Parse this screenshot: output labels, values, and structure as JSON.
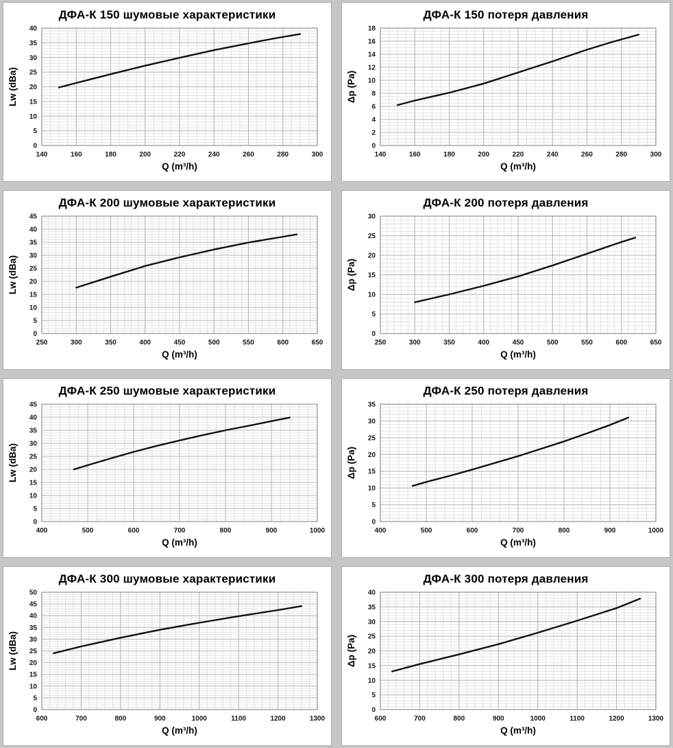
{
  "colors": {
    "page_background": "#c6c6c6",
    "panel_background": "#ffffff",
    "panel_border": "#ababab",
    "grid_minor": "#e3e3e3",
    "grid_major": "#b6b6b6",
    "plot_border": "#7d7d7d",
    "curve": "#101010",
    "text": "#000000"
  },
  "chart_data": [
    {
      "type": "line",
      "title": "ДФА-К 150 шумовые характеристики",
      "xlabel": "Q (m³/h)",
      "ylabel": "Lw (dBa)",
      "xlim": [
        140,
        300
      ],
      "ylim": [
        0,
        40
      ],
      "xticks": [
        140,
        160,
        180,
        200,
        220,
        240,
        260,
        280,
        300
      ],
      "yticks": [
        0,
        5,
        10,
        15,
        20,
        25,
        30,
        35,
        40
      ],
      "x_minor_step": 5,
      "y_minor_step": 1,
      "grid": true,
      "legend": false,
      "x": [
        150,
        160,
        180,
        200,
        220,
        240,
        260,
        275,
        290
      ],
      "y": [
        19.8,
        21.3,
        24.3,
        27.2,
        29.9,
        32.5,
        34.8,
        36.5,
        38
      ]
    },
    {
      "type": "line",
      "title": "ДФА-К 150 потеря давления",
      "xlabel": "Q (m³/h)",
      "ylabel": "Δp (Pa)",
      "xlim": [
        140,
        300
      ],
      "ylim": [
        0,
        18
      ],
      "xticks": [
        140,
        160,
        180,
        200,
        220,
        240,
        260,
        280,
        300
      ],
      "yticks": [
        0,
        2,
        4,
        6,
        8,
        10,
        12,
        14,
        16,
        18
      ],
      "x_minor_step": 5,
      "y_minor_step": 0.5,
      "grid": true,
      "legend": false,
      "x": [
        150,
        160,
        180,
        200,
        220,
        240,
        260,
        275,
        290
      ],
      "y": [
        6.2,
        6.9,
        8.1,
        9.5,
        11.2,
        12.9,
        14.7,
        15.9,
        17
      ]
    },
    {
      "type": "line",
      "title": "ДФА-К 200 шумовые характеристики",
      "xlabel": "Q (m³/h)",
      "ylabel": "Lw (dBa)",
      "xlim": [
        250,
        650
      ],
      "ylim": [
        0,
        45
      ],
      "xticks": [
        250,
        300,
        350,
        400,
        450,
        500,
        550,
        600,
        650
      ],
      "yticks": [
        0,
        5,
        10,
        15,
        20,
        25,
        30,
        35,
        40,
        45
      ],
      "x_minor_step": 10,
      "y_minor_step": 1,
      "grid": true,
      "legend": false,
      "x": [
        300,
        350,
        400,
        450,
        500,
        550,
        600,
        620
      ],
      "y": [
        17.6,
        21.8,
        25.9,
        29.2,
        32.2,
        34.9,
        37.1,
        38
      ]
    },
    {
      "type": "line",
      "title": "ДФА-К 200 потеря давления",
      "xlabel": "Q (m³/h)",
      "ylabel": "Δp (Pa)",
      "xlim": [
        250,
        650
      ],
      "ylim": [
        0,
        30
      ],
      "xticks": [
        250,
        300,
        350,
        400,
        450,
        500,
        550,
        600,
        650
      ],
      "yticks": [
        0,
        5,
        10,
        15,
        20,
        25,
        30
      ],
      "x_minor_step": 10,
      "y_minor_step": 1,
      "grid": true,
      "legend": false,
      "x": [
        300,
        350,
        400,
        450,
        500,
        550,
        600,
        620
      ],
      "y": [
        8,
        10,
        12.2,
        14.6,
        17.4,
        20.4,
        23.4,
        24.5
      ]
    },
    {
      "type": "line",
      "title": "ДФА-К 250 шумовые характеристики",
      "xlabel": "Q (m³/h)",
      "ylabel": "Lw (dBa)",
      "xlim": [
        400,
        1000
      ],
      "ylim": [
        0,
        45
      ],
      "xticks": [
        400,
        500,
        600,
        700,
        800,
        900,
        1000
      ],
      "yticks": [
        0,
        5,
        10,
        15,
        20,
        25,
        30,
        35,
        40,
        45
      ],
      "x_minor_step": 20,
      "y_minor_step": 1,
      "grid": true,
      "legend": false,
      "x": [
        470,
        500,
        550,
        600,
        650,
        700,
        750,
        800,
        850,
        900,
        940
      ],
      "y": [
        20,
        21.6,
        24.2,
        26.7,
        29,
        31.1,
        33.1,
        35,
        36.7,
        38.5,
        39.9
      ]
    },
    {
      "type": "line",
      "title": "ДФА-К 250 потеря давления",
      "xlabel": "Q (m³/h)",
      "ylabel": "Δp (Pa)",
      "xlim": [
        400,
        1000
      ],
      "ylim": [
        0,
        35
      ],
      "xticks": [
        400,
        500,
        600,
        700,
        800,
        900,
        1000
      ],
      "yticks": [
        0,
        5,
        10,
        15,
        20,
        25,
        30,
        35
      ],
      "x_minor_step": 20,
      "y_minor_step": 1,
      "grid": true,
      "legend": false,
      "x": [
        470,
        500,
        550,
        600,
        650,
        700,
        750,
        800,
        850,
        900,
        940
      ],
      "y": [
        10.6,
        11.8,
        13.6,
        15.5,
        17.5,
        19.5,
        21.7,
        23.9,
        26.3,
        28.8,
        31
      ]
    },
    {
      "type": "line",
      "title": "ДФА-К 300 шумовые характеристики",
      "xlabel": "Q (m³/h)",
      "ylabel": "Lw (dBa)",
      "xlim": [
        600,
        1300
      ],
      "ylim": [
        0,
        50
      ],
      "xticks": [
        600,
        700,
        800,
        900,
        1000,
        1100,
        1200,
        1300
      ],
      "yticks": [
        0,
        5,
        10,
        15,
        20,
        25,
        30,
        35,
        40,
        45,
        50
      ],
      "x_minor_step": 20,
      "y_minor_step": 1,
      "grid": true,
      "legend": false,
      "x": [
        630,
        700,
        800,
        900,
        1000,
        1100,
        1200,
        1260
      ],
      "y": [
        24,
        26.9,
        30.6,
        34,
        37,
        39.8,
        42.4,
        44.1
      ]
    },
    {
      "type": "line",
      "title": "ДФА-К 300 потеря давления",
      "xlabel": "Q (m³/h)",
      "ylabel": "Δp (Pa)",
      "xlim": [
        600,
        1300
      ],
      "ylim": [
        0,
        40
      ],
      "xticks": [
        600,
        700,
        800,
        900,
        1000,
        1100,
        1200,
        1300
      ],
      "yticks": [
        0,
        5,
        10,
        15,
        20,
        25,
        30,
        35,
        40
      ],
      "x_minor_step": 20,
      "y_minor_step": 1,
      "grid": true,
      "legend": false,
      "x": [
        630,
        700,
        800,
        900,
        1000,
        1100,
        1200,
        1260
      ],
      "y": [
        13,
        15.5,
        18.8,
        22.3,
        26.2,
        30.3,
        34.6,
        37.8
      ]
    }
  ]
}
